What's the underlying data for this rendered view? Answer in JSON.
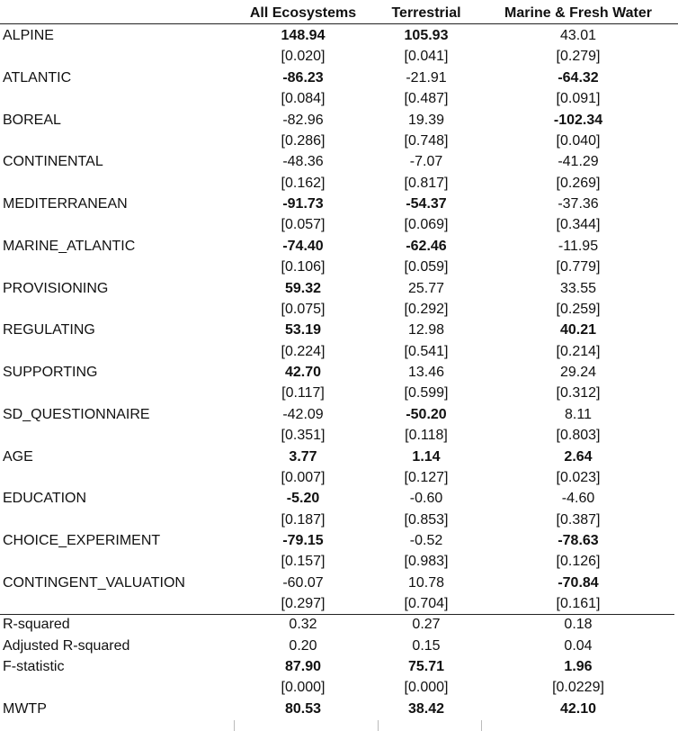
{
  "table": {
    "headers": [
      "All Ecosystems",
      "Terrestrial",
      "Marine & Fresh Water"
    ],
    "rows": [
      {
        "label": "ALPINE",
        "values": [
          "148.94",
          "105.93",
          "43.01"
        ],
        "bold": [
          true,
          true,
          false
        ],
        "pvalues": [
          "[0.020]",
          "[0.041]",
          "[0.279]"
        ]
      },
      {
        "label": "ATLANTIC",
        "values": [
          "-86.23",
          "-21.91",
          "-64.32"
        ],
        "bold": [
          true,
          false,
          true
        ],
        "pvalues": [
          "[0.084]",
          "[0.487]",
          "[0.091]"
        ]
      },
      {
        "label": "BOREAL",
        "values": [
          "-82.96",
          "19.39",
          "-102.34"
        ],
        "bold": [
          false,
          false,
          true
        ],
        "pvalues": [
          "[0.286]",
          "[0.748]",
          "[0.040]"
        ]
      },
      {
        "label": "CONTINENTAL",
        "values": [
          "-48.36",
          "-7.07",
          "-41.29"
        ],
        "bold": [
          false,
          false,
          false
        ],
        "pvalues": [
          "[0.162]",
          "[0.817]",
          "[0.269]"
        ]
      },
      {
        "label": "MEDITERRANEAN",
        "values": [
          "-91.73",
          "-54.37",
          "-37.36"
        ],
        "bold": [
          true,
          true,
          false
        ],
        "pvalues": [
          "[0.057]",
          "[0.069]",
          "[0.344]"
        ]
      },
      {
        "label": "MARINE_ATLANTIC",
        "values": [
          "-74.40",
          "-62.46",
          "-11.95"
        ],
        "bold": [
          true,
          true,
          false
        ],
        "pvalues": [
          "[0.106]",
          "[0.059]",
          "[0.779]"
        ]
      },
      {
        "label": "PROVISIONING",
        "values": [
          "59.32",
          "25.77",
          "33.55"
        ],
        "bold": [
          true,
          false,
          false
        ],
        "pvalues": [
          "[0.075]",
          "[0.292]",
          "[0.259]"
        ]
      },
      {
        "label": "REGULATING",
        "values": [
          "53.19",
          "12.98",
          "40.21"
        ],
        "bold": [
          true,
          false,
          true
        ],
        "pvalues": [
          "[0.224]",
          "[0.541]",
          "[0.214]"
        ]
      },
      {
        "label": "SUPPORTING",
        "values": [
          "42.70",
          "13.46",
          "29.24"
        ],
        "bold": [
          true,
          false,
          false
        ],
        "pvalues": [
          "[0.117]",
          "[0.599]",
          "[0.312]"
        ]
      },
      {
        "label": "SD_QUESTIONNAIRE",
        "values": [
          "-42.09",
          "-50.20",
          "8.11"
        ],
        "bold": [
          false,
          true,
          false
        ],
        "pvalues": [
          "[0.351]",
          "[0.118]",
          "[0.803]"
        ]
      },
      {
        "label": "AGE",
        "values": [
          "3.77",
          "1.14",
          "2.64"
        ],
        "bold": [
          true,
          true,
          true
        ],
        "pvalues": [
          "[0.007]",
          "[0.127]",
          "[0.023]"
        ]
      },
      {
        "label": "EDUCATION",
        "values": [
          "-5.20",
          "-0.60",
          "-4.60"
        ],
        "bold": [
          true,
          false,
          false
        ],
        "pvalues": [
          "[0.187]",
          "[0.853]",
          "[0.387]"
        ]
      },
      {
        "label": "CHOICE_EXPERIMENT",
        "values": [
          "-79.15",
          "-0.52",
          "-78.63"
        ],
        "bold": [
          true,
          false,
          true
        ],
        "pvalues": [
          "[0.157]",
          "[0.983]",
          "[0.126]"
        ]
      },
      {
        "label": "CONTINGENT_VALUATION",
        "values": [
          "-60.07",
          "10.78",
          "-70.84"
        ],
        "bold": [
          false,
          false,
          true
        ],
        "pvalues": [
          "[0.297]",
          "[0.704]",
          "[0.161]"
        ]
      }
    ],
    "stats": [
      {
        "label": "R-squared",
        "values": [
          "0.32",
          "0.27",
          "0.18"
        ],
        "bold": [
          false,
          false,
          false
        ]
      },
      {
        "label": "Adjusted R-squared",
        "values": [
          "0.20",
          "0.15",
          "0.04"
        ],
        "bold": [
          false,
          false,
          false
        ]
      },
      {
        "label": "F-statistic",
        "values": [
          "87.90",
          "75.71",
          "1.96"
        ],
        "bold": [
          true,
          true,
          true
        ],
        "pvalues": [
          "[0.000]",
          "[0.000]",
          "[0.0229]"
        ]
      },
      {
        "label": "MWTP",
        "values": [
          "80.53",
          "38.42",
          "42.10"
        ],
        "bold": [
          true,
          true,
          true
        ]
      }
    ]
  }
}
